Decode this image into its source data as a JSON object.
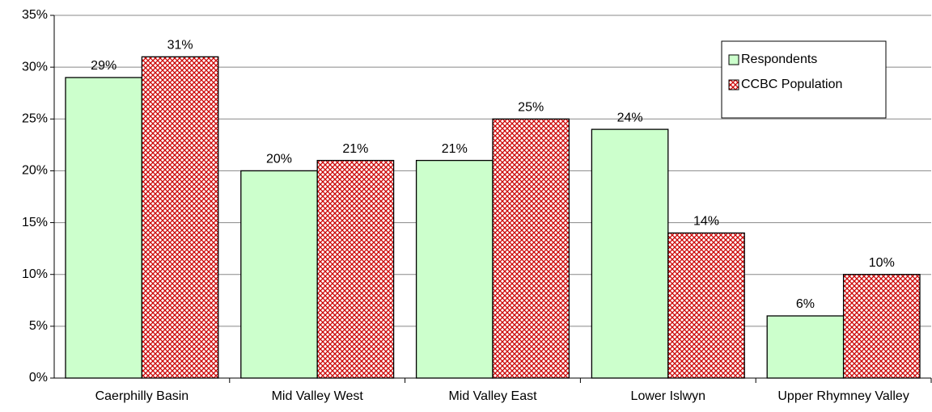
{
  "chart_data": {
    "type": "bar",
    "categories": [
      "Caerphilly Basin",
      "Mid Valley West",
      "Mid Valley East",
      "Lower Islwyn",
      "Upper Rhymney Valley"
    ],
    "series": [
      {
        "name": "Respondents",
        "color": "#ccffcc",
        "values": [
          29,
          20,
          21,
          24,
          6
        ],
        "value_labels": [
          "29%",
          "20%",
          "21%",
          "24%",
          "6%"
        ]
      },
      {
        "name": "CCBC Population",
        "color": "#cc0000",
        "pattern": "crosshatch",
        "values": [
          31,
          21,
          25,
          14,
          10
        ],
        "value_labels": [
          "31%",
          "21%",
          "25%",
          "14%",
          "10%"
        ]
      }
    ],
    "ylim": [
      0,
      35
    ],
    "yticks": [
      {
        "value": 0,
        "label": "0%"
      },
      {
        "value": 5,
        "label": "5%"
      },
      {
        "value": 10,
        "label": "10%"
      },
      {
        "value": 15,
        "label": "15%"
      },
      {
        "value": 20,
        "label": "20%"
      },
      {
        "value": 25,
        "label": "25%"
      },
      {
        "value": 30,
        "label": "30%"
      },
      {
        "value": 35,
        "label": "35%"
      }
    ],
    "grid": true,
    "legend": "upper right"
  }
}
